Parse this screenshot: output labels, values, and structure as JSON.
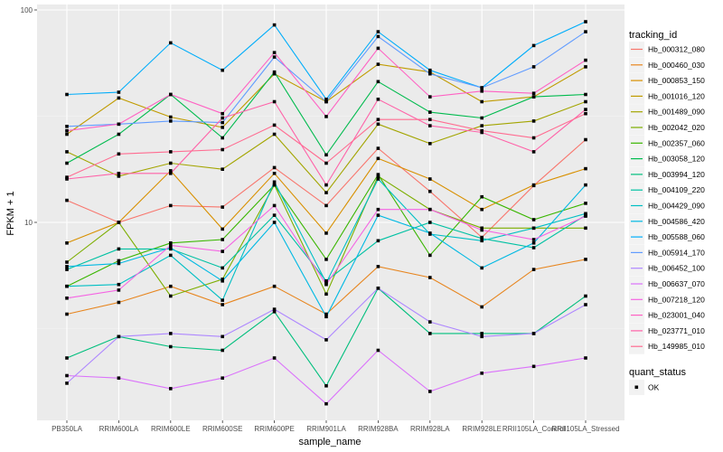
{
  "chart_data": {
    "type": "line",
    "title": "",
    "xlabel": "sample_name",
    "ylabel": "FPKM + 1",
    "yscale": "log10",
    "ylim": [
      1.3,
      100
    ],
    "yticks": [
      10,
      100
    ],
    "ytick_labels": [
      "10",
      "100"
    ],
    "grid": true,
    "legend_position": "right",
    "categories": [
      "PB350LA",
      "RRIM600LA",
      "RRIM600LE",
      "RRIM600SE",
      "RRIM600PE",
      "RRIM901LA",
      "RRIM928BA",
      "RRIM928LA",
      "RRIM928LE",
      "RRII105LA_Control",
      "RRII105LA_Stressed"
    ],
    "legend_title": "tracking_id",
    "shape_legend_title": "quant_status",
    "shape_legend_items": [
      "OK"
    ],
    "series": [
      {
        "name": "Hb_000312_080",
        "color": "#F8766D",
        "values": [
          12.7,
          10.0,
          12.0,
          11.8,
          18.1,
          12.0,
          22.3,
          14.0,
          8.5,
          14.9,
          24.5
        ]
      },
      {
        "name": "Hb_000460_030",
        "color": "#E7851E",
        "values": [
          3.7,
          4.2,
          5.0,
          4.1,
          5.0,
          3.7,
          6.2,
          5.5,
          4.0,
          6.0,
          6.7
        ]
      },
      {
        "name": "Hb_000853_150",
        "color": "#D89000",
        "values": [
          8.0,
          10.0,
          17.5,
          9.3,
          17.0,
          8.9,
          20.0,
          16.0,
          11.5,
          15.0,
          17.9
        ]
      },
      {
        "name": "Hb_001016_120",
        "color": "#C09B00",
        "values": [
          26.0,
          38.5,
          31.3,
          28.0,
          50.0,
          37.0,
          55.5,
          51.0,
          37.0,
          39.0,
          54.0
        ]
      },
      {
        "name": "Hb_001489_090",
        "color": "#A3A500",
        "values": [
          21.5,
          16.5,
          19.0,
          17.8,
          26.0,
          13.8,
          29.0,
          23.5,
          28.5,
          30.0,
          37.0
        ]
      },
      {
        "name": "Hb_002042_020",
        "color": "#7CAE00",
        "values": [
          6.5,
          10.0,
          4.5,
          5.4,
          15.0,
          4.6,
          16.5,
          11.5,
          9.4,
          9.4,
          9.4
        ]
      },
      {
        "name": "Hb_002357_060",
        "color": "#39B600",
        "values": [
          5.0,
          6.6,
          8.0,
          8.3,
          15.0,
          6.7,
          16.8,
          7.0,
          13.2,
          10.3,
          12.3
        ]
      },
      {
        "name": "Hb_003058_120",
        "color": "#00BB4E",
        "values": [
          19.0,
          26.0,
          40.0,
          25.0,
          51.0,
          20.8,
          46.0,
          33.0,
          31.0,
          39.0,
          40.0
        ]
      },
      {
        "name": "Hb_003994_120",
        "color": "#00BF7D",
        "values": [
          2.3,
          2.9,
          2.6,
          2.5,
          3.8,
          1.7,
          4.9,
          3.0,
          3.0,
          3.0,
          4.5
        ]
      },
      {
        "name": "Hb_004109_220",
        "color": "#00C1A3",
        "values": [
          6.0,
          7.5,
          7.5,
          6.1,
          10.8,
          5.3,
          8.2,
          10.0,
          8.4,
          7.6,
          10.8
        ]
      },
      {
        "name": "Hb_004429_090",
        "color": "#00BFC4",
        "values": [
          5.0,
          5.1,
          7.0,
          4.3,
          15.5,
          5.2,
          16.0,
          8.8,
          8.2,
          9.4,
          11.0
        ]
      },
      {
        "name": "Hb_004586_420",
        "color": "#00B9E3",
        "values": [
          6.2,
          6.4,
          7.6,
          5.3,
          10.0,
          3.6,
          10.8,
          8.9,
          6.1,
          8.0,
          15.0
        ]
      },
      {
        "name": "Hb_005588_060",
        "color": "#00ADFA",
        "values": [
          40.0,
          41.0,
          70.0,
          52.0,
          85.0,
          38.0,
          79.0,
          52.0,
          43.0,
          68.0,
          88.0
        ]
      },
      {
        "name": "Hb_005914_170",
        "color": "#619CFF",
        "values": [
          28.3,
          29.0,
          30.0,
          29.5,
          60.0,
          37.0,
          75.0,
          50.0,
          43.0,
          54.0,
          79.0
        ]
      },
      {
        "name": "Hb_006452_100",
        "color": "#AE87FF",
        "values": [
          1.75,
          2.9,
          3.0,
          2.9,
          3.9,
          2.8,
          4.9,
          3.4,
          2.9,
          3.0,
          4.1
        ]
      },
      {
        "name": "Hb_006637_070",
        "color": "#DB72FB",
        "values": [
          1.9,
          1.85,
          1.65,
          1.85,
          2.3,
          1.4,
          2.5,
          1.6,
          1.95,
          2.1,
          2.3
        ]
      },
      {
        "name": "Hb_007218_120",
        "color": "#F564E3",
        "values": [
          4.4,
          4.8,
          7.8,
          7.3,
          12.0,
          5.1,
          11.5,
          11.5,
          9.2,
          8.3,
          10.7
        ]
      },
      {
        "name": "Hb_023001_040",
        "color": "#FF61C3",
        "values": [
          27.0,
          29.0,
          40.0,
          32.5,
          63.0,
          31.5,
          66.0,
          39.0,
          41.5,
          40.5,
          58.0
        ]
      },
      {
        "name": "Hb_023771_010",
        "color": "#FF62A8",
        "values": [
          16.0,
          17.0,
          17.0,
          31.0,
          37.0,
          15.0,
          38.0,
          28.5,
          26.5,
          21.5,
          34.0
        ]
      },
      {
        "name": "Hb_149985_010",
        "color": "#FF6C91",
        "values": [
          16.3,
          21.0,
          21.5,
          22.0,
          28.7,
          19.0,
          30.5,
          30.5,
          27.0,
          25.0,
          32.5
        ]
      }
    ]
  }
}
